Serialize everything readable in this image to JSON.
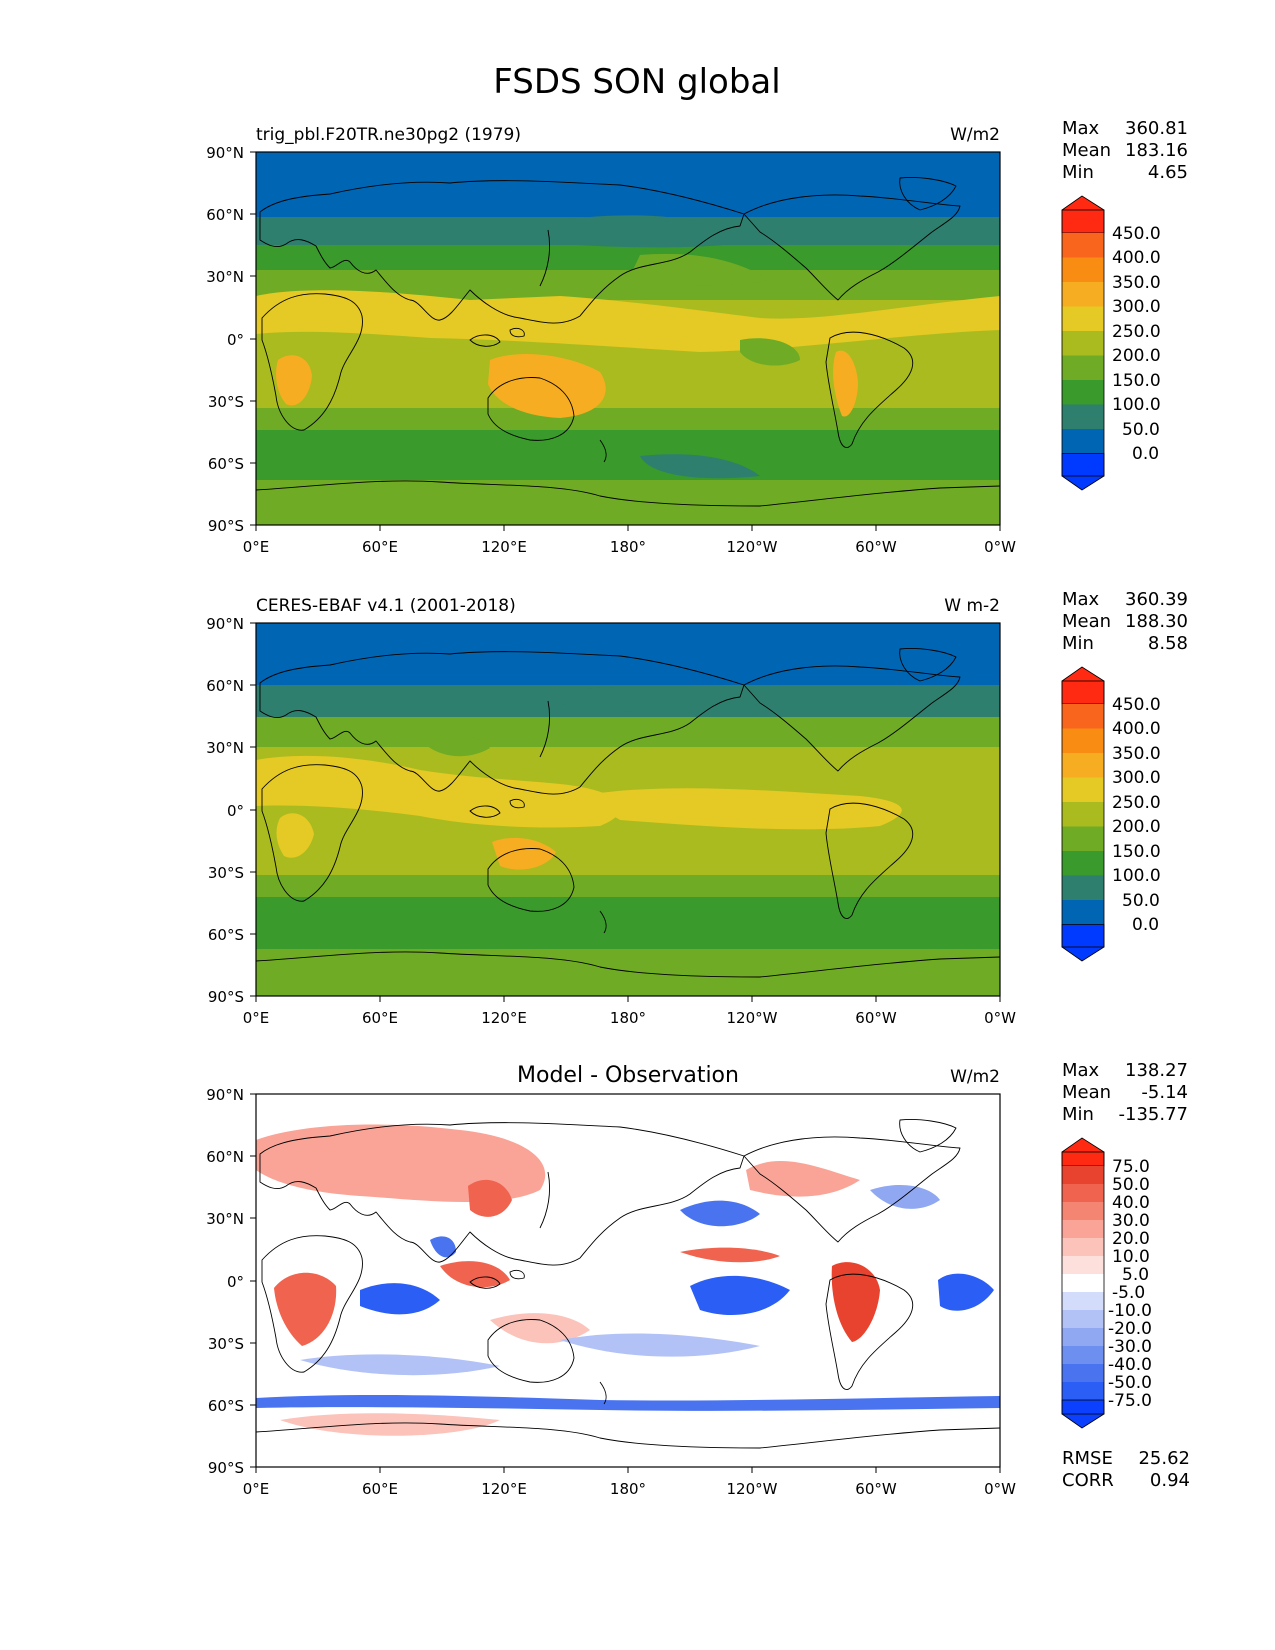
{
  "figure": {
    "title": "FSDS SON global"
  },
  "colors": {
    "abs_levels": [
      "#0039ff",
      "#0066b3",
      "#2e7f6e",
      "#3a9a2b",
      "#6fab24",
      "#a9bb1f",
      "#e5c924",
      "#f7ad21",
      "#f98d14",
      "#f9651d",
      "#ff2a11"
    ],
    "diff_levels": [
      "#0b40ff",
      "#2b5ef5",
      "#4a74ef",
      "#6d8ff0",
      "#90a8f2",
      "#b2c2f6",
      "#d3ddfb",
      "#ffffff",
      "#fde0dc",
      "#fbc3ba",
      "#f9a497",
      "#f48572",
      "#ef634f",
      "#e8432e",
      "#ff2a11"
    ],
    "coastline": "#000000"
  },
  "chart_data": [
    {
      "type": "heatmap",
      "panel": "test",
      "left_title": "trig_pbl.F20TR.ne30pg2 (1979)",
      "units": "W/m2",
      "stats": [
        {
          "label": "Max",
          "value": "360.81"
        },
        {
          "label": "Mean",
          "value": "183.16"
        },
        {
          "label": "Min",
          "value": "4.65"
        }
      ],
      "colorbar_ticks": [
        "450.0",
        "400.0",
        "350.0",
        "300.0",
        "250.0",
        "200.0",
        "150.0",
        "100.0",
        "50.0",
        "0.0"
      ],
      "x_ticks": [
        "0°E",
        "60°E",
        "120°E",
        "180°",
        "120°W",
        "60°W",
        "0°W"
      ],
      "y_ticks": [
        "90°N",
        "60°N",
        "30°N",
        "0°",
        "30°S",
        "60°S",
        "90°S"
      ],
      "xlim": [
        0,
        360
      ],
      "ylim": [
        -90,
        90
      ]
    },
    {
      "type": "heatmap",
      "panel": "reference",
      "left_title": "CERES-EBAF v4.1 (2001-2018)",
      "units": "W m-2",
      "stats": [
        {
          "label": "Max",
          "value": "360.39"
        },
        {
          "label": "Mean",
          "value": "188.30"
        },
        {
          "label": "Min",
          "value": "8.58"
        }
      ],
      "colorbar_ticks": [
        "450.0",
        "400.0",
        "350.0",
        "300.0",
        "250.0",
        "200.0",
        "150.0",
        "100.0",
        "50.0",
        "0.0"
      ],
      "x_ticks": [
        "0°E",
        "60°E",
        "120°E",
        "180°",
        "120°W",
        "60°W",
        "0°W"
      ],
      "y_ticks": [
        "90°N",
        "60°N",
        "30°N",
        "0°",
        "30°S",
        "60°S",
        "90°S"
      ],
      "xlim": [
        0,
        360
      ],
      "ylim": [
        -90,
        90
      ]
    },
    {
      "type": "heatmap",
      "panel": "difference",
      "center_title": "Model - Observation",
      "units": "W/m2",
      "stats": [
        {
          "label": "Max",
          "value": "138.27"
        },
        {
          "label": "Mean",
          "value": "-5.14"
        },
        {
          "label": "Min",
          "value": "-135.77"
        }
      ],
      "colorbar_ticks": [
        "75.0",
        "50.0",
        "40.0",
        "30.0",
        "20.0",
        "10.0",
        "5.0",
        "-5.0",
        "-10.0",
        "-20.0",
        "-30.0",
        "-40.0",
        "-50.0",
        "-75.0"
      ],
      "x_ticks": [
        "0°E",
        "60°E",
        "120°E",
        "180°",
        "120°W",
        "60°W",
        "0°W"
      ],
      "y_ticks": [
        "90°N",
        "60°N",
        "30°N",
        "0°",
        "30°S",
        "60°S",
        "90°S"
      ],
      "xlim": [
        0,
        360
      ],
      "ylim": [
        -90,
        90
      ],
      "metrics": [
        {
          "label": "RMSE",
          "value": "25.62"
        },
        {
          "label": "CORR",
          "value": "0.94"
        }
      ]
    }
  ]
}
